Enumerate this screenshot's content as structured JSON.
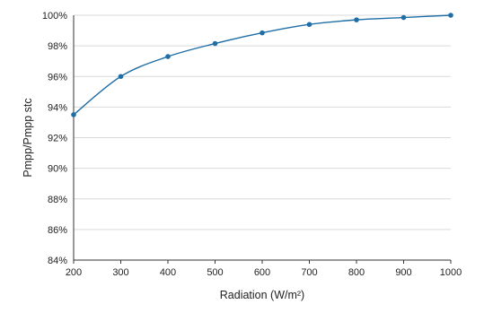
{
  "chart_data": {
    "type": "line",
    "title": "",
    "xlabel": "Radiation (W/m²)",
    "ylabel": "Pmpp/Pmpp stc",
    "x": [
      200,
      300,
      400,
      500,
      600,
      700,
      800,
      900,
      1000
    ],
    "series": [
      {
        "values": [
          93.5,
          96.0,
          97.3,
          98.15,
          98.85,
          99.4,
          99.7,
          99.85,
          100.0
        ]
      }
    ],
    "xlim": [
      200,
      1000
    ],
    "ylim": [
      84,
      100
    ],
    "xticks": [
      200,
      300,
      400,
      500,
      600,
      700,
      800,
      900,
      1000
    ],
    "xtick_labels": [
      "200",
      "300",
      "400",
      "500",
      "600",
      "700",
      "800",
      "900",
      "1000"
    ],
    "yticks": [
      84,
      86,
      88,
      90,
      92,
      94,
      96,
      98,
      100
    ],
    "ytick_labels": [
      "84%",
      "86%",
      "88%",
      "90%",
      "92%",
      "94%",
      "96%",
      "98%",
      "100%"
    ],
    "grid": "horizontal",
    "line_color": "#1f6ea6",
    "marker_color": "#1f6ea6"
  }
}
